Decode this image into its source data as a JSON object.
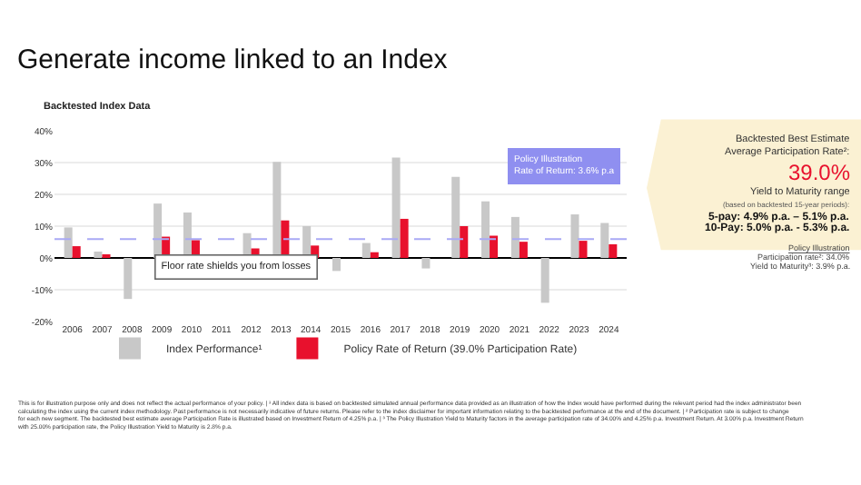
{
  "chart_data": {
    "type": "bar",
    "title": "Generate income linked to an Index",
    "subtitle": "Backtested Index Data",
    "categories": [
      "2006",
      "2007",
      "2008",
      "2009",
      "2010",
      "2011",
      "2012",
      "2013",
      "2014",
      "2015",
      "2016",
      "2017",
      "2018",
      "2019",
      "2020",
      "2021",
      "2022",
      "2023",
      "2024"
    ],
    "series": [
      {
        "name": "Index Performance¹",
        "color": "#c8c8c8",
        "values": [
          9.6,
          2.0,
          -12.9,
          17.1,
          14.3,
          0.0,
          7.8,
          30.2,
          10.0,
          -4.1,
          4.7,
          31.6,
          -3.3,
          25.5,
          17.8,
          12.9,
          -14.1,
          13.7,
          11.0
        ]
      },
      {
        "name": "Policy Rate of Return (39.0% Participation Rate)",
        "color": "#e8112d",
        "values": [
          3.7,
          0.8,
          0.0,
          6.7,
          5.6,
          0.0,
          3.0,
          11.8,
          3.9,
          0.0,
          1.8,
          12.3,
          0.0,
          10.0,
          7.0,
          5.1,
          0.0,
          5.4,
          4.3
        ]
      }
    ],
    "ylim": [
      -20,
      40
    ],
    "yticks": [
      {
        "value": -20,
        "label": "-20%"
      },
      {
        "value": -10,
        "label": "-10%"
      },
      {
        "value": 0,
        "label": "0%"
      },
      {
        "value": 10,
        "label": "10%"
      },
      {
        "value": 20,
        "label": "20%"
      },
      {
        "value": 30,
        "label": "30%"
      },
      {
        "value": 40,
        "label": "40%"
      }
    ],
    "ref_lines": [
      {
        "axis": "y",
        "value": 5.9,
        "color": "#a9a9f5",
        "line_style": "dashed"
      }
    ],
    "grid": "y",
    "legend": "bottom",
    "annotations": [
      "Policy Illustration\nRate of Return: 3.6% p.a",
      "Floor rate shields you from losses",
      "Backtested Best Estimate\nAverage Participation Rate²:",
      "39.0%",
      "Yield to Maturity range",
      "(based on backtested 15-year periods):",
      "5-pay: 4.9% p.a. – 5.1% p.a.",
      "10-Pay: 5.0% p.a. - 5.3% p.a.",
      "Policy Illustration",
      "Participation rate²: 34.0%",
      "Yield to Maturity³: 3.9% p.a.",
      "This is for illustration purpose only and does not reflect the actual performance of your policy. | ¹ All index data is based on backtested simulated annual performance data provided as an illustration of how the Index would have performed during the relevant period had the index administrator been calculating the index using the current index methodology. Past performance is not necessarily indicative of future returns. Please refer to the index disclaimer for important information relating to the backtested performance at the end of the document. | ² Participation rate is subject to change for each new segment. The backtested best estimate average Participation Rate is illustrated based on Investment Return of 4.25% p.a. | ³ The Policy Illustration Yield to Maturity factors in the average participation rate of 34.00% and 4.25% p.a. Investment Return. At 3.00% p.a. Investment Return with 25.00% participation rate, the Policy Illustration Yield to Maturity is 2.8% p.a."
    ]
  }
}
